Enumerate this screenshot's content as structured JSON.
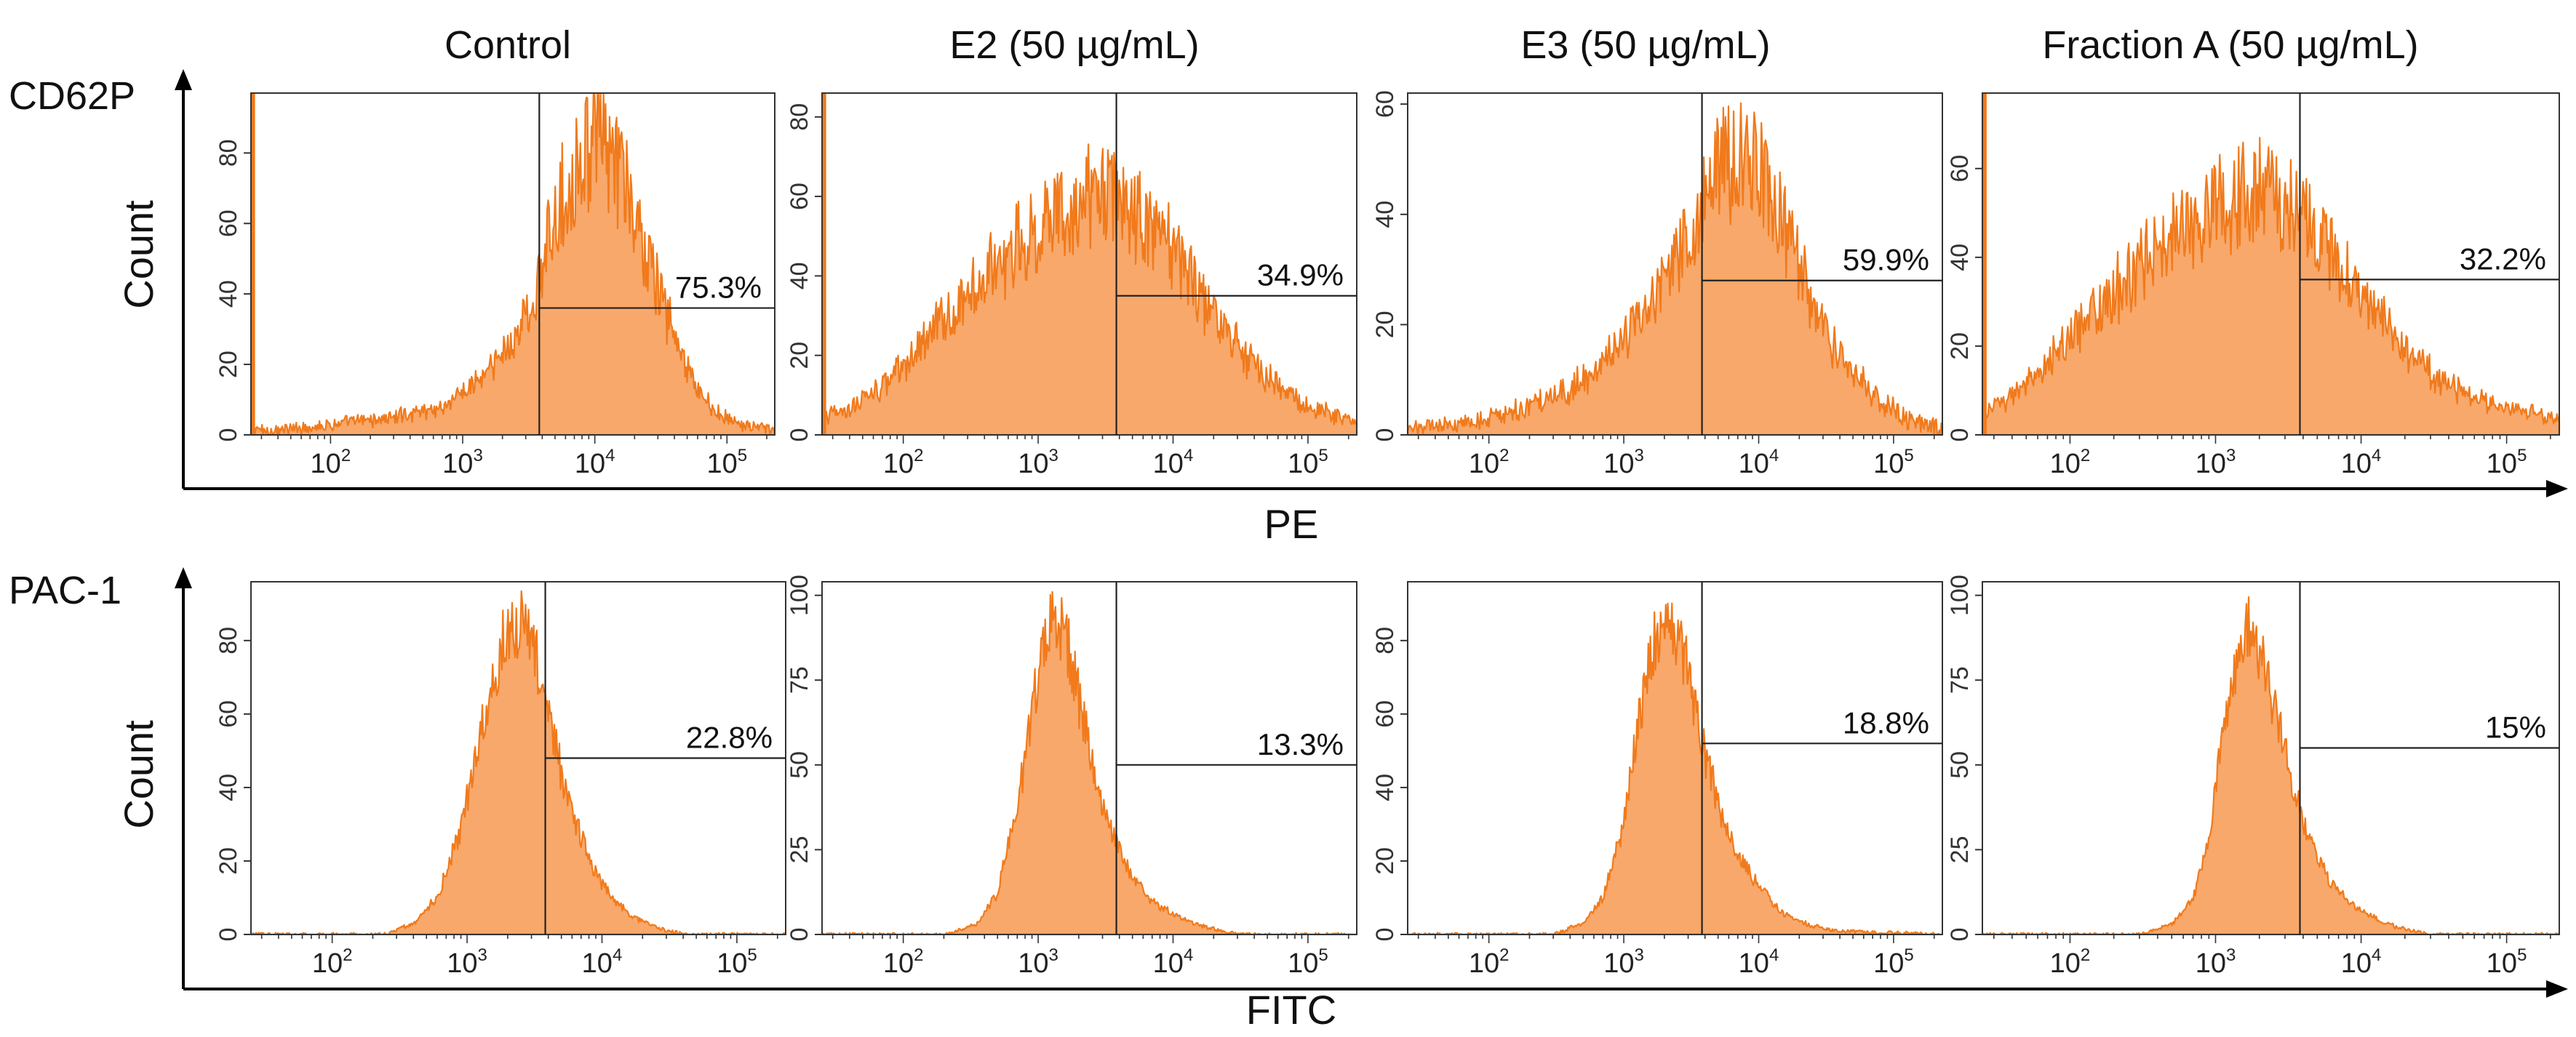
{
  "chart_data": {
    "type": "histogram",
    "title": "",
    "columns": [
      "Control",
      "E2 (50 µg/mL)",
      "E3 (50 µg/mL)",
      "Fraction A (50 µg/mL)"
    ],
    "xscale": "log",
    "xlim": [
      25,
      230000
    ],
    "x_ticks": [
      {
        "value": 100,
        "base": "10",
        "exp": "2"
      },
      {
        "value": 1000,
        "base": "10",
        "exp": "3"
      },
      {
        "value": 10000,
        "base": "10",
        "exp": "4"
      },
      {
        "value": 100000,
        "base": "10",
        "exp": "5"
      }
    ],
    "fill_color": "#f8a86a",
    "line_color": "#f07a1c",
    "gate_color": "#222222",
    "rows": [
      {
        "marker": "CD62P",
        "ylabel": "Count",
        "xlabel": "PE",
        "panels": [
          {
            "condition": "Control",
            "ymax": 97,
            "yticks": [
              0,
              20,
              40,
              60,
              80
            ],
            "gate_x": 3800,
            "gate_y": 36,
            "percent_label": "75.3%",
            "curve": [
              [
                25,
                2
              ],
              [
                35,
                1
              ],
              [
                100,
                3
              ],
              [
                300,
                5
              ],
              [
                700,
                8
              ],
              [
                1000,
                12
              ],
              [
                1600,
                18
              ],
              [
                2500,
                28
              ],
              [
                3500,
                38
              ],
              [
                4500,
                55
              ],
              [
                6000,
                70
              ],
              [
                8000,
                80
              ],
              [
                10000,
                84
              ],
              [
                13000,
                80
              ],
              [
                17000,
                70
              ],
              [
                22000,
                56
              ],
              [
                30000,
                42
              ],
              [
                40000,
                28
              ],
              [
                55000,
                15
              ],
              [
                80000,
                7
              ],
              [
                120000,
                3
              ],
              [
                230000,
                1
              ]
            ],
            "spike": {
              "x": 26,
              "y": 97
            }
          },
          {
            "condition": "E2 (50 µg/mL)",
            "ymax": 86,
            "yticks": [
              0,
              20,
              40,
              60,
              80
            ],
            "gate_x": 3800,
            "gate_y": 35,
            "percent_label": "34.9%",
            "curve": [
              [
                25,
                4
              ],
              [
                40,
                7
              ],
              [
                70,
                12
              ],
              [
                120,
                20
              ],
              [
                200,
                29
              ],
              [
                350,
                38
              ],
              [
                600,
                46
              ],
              [
                1000,
                52
              ],
              [
                1600,
                57
              ],
              [
                2500,
                60
              ],
              [
                3500,
                60
              ],
              [
                5000,
                57
              ],
              [
                8000,
                50
              ],
              [
                13000,
                40
              ],
              [
                22000,
                28
              ],
              [
                40000,
                17
              ],
              [
                80000,
                9
              ],
              [
                150000,
                5
              ],
              [
                230000,
                3
              ]
            ],
            "spike": {
              "x": 26,
              "y": 86
            }
          },
          {
            "condition": "E3 (50 µg/mL)",
            "ymax": 62,
            "yticks": [
              0,
              20,
              40,
              60
            ],
            "gate_x": 3800,
            "gate_y": 28,
            "percent_label": "59.9%",
            "curve": [
              [
                25,
                1
              ],
              [
                60,
                2
              ],
              [
                150,
                4
              ],
              [
                300,
                7
              ],
              [
                600,
                11
              ],
              [
                1000,
                17
              ],
              [
                1600,
                24
              ],
              [
                2500,
                32
              ],
              [
                3500,
                40
              ],
              [
                5000,
                48
              ],
              [
                7000,
                52
              ],
              [
                9000,
                50
              ],
              [
                12000,
                44
              ],
              [
                17000,
                35
              ],
              [
                25000,
                24
              ],
              [
                40000,
                14
              ],
              [
                70000,
                7
              ],
              [
                120000,
                3
              ],
              [
                230000,
                1
              ]
            ],
            "spike": null
          },
          {
            "condition": "Fraction A (50 µg/mL)",
            "ymax": 77,
            "yticks": [
              0,
              20,
              40,
              60
            ],
            "gate_x": 3800,
            "gate_y": 35,
            "percent_label": "32.2%",
            "curve": [
              [
                25,
                5
              ],
              [
                40,
                9
              ],
              [
                70,
                16
              ],
              [
                120,
                24
              ],
              [
                200,
                32
              ],
              [
                350,
                40
              ],
              [
                600,
                46
              ],
              [
                1000,
                51
              ],
              [
                1500,
                54
              ],
              [
                2200,
                55
              ],
              [
                3000,
                53
              ],
              [
                4500,
                47
              ],
              [
                7000,
                38
              ],
              [
                12000,
                28
              ],
              [
                22000,
                18
              ],
              [
                45000,
                10
              ],
              [
                90000,
                6
              ],
              [
                230000,
                4
              ]
            ],
            "spike": {
              "x": 26,
              "y": 77
            }
          }
        ]
      },
      {
        "marker": "PAC-1",
        "ylabel": "Count",
        "xlabel": "FITC",
        "panels": [
          {
            "condition": "Control",
            "ymax": 96,
            "yticks": [
              0,
              20,
              40,
              60,
              80
            ],
            "gate_x": 3800,
            "gate_y": 48,
            "percent_label": "22.8%",
            "curve": [
              [
                25,
                0
              ],
              [
                250,
                0
              ],
              [
                400,
                3
              ],
              [
                600,
                10
              ],
              [
                900,
                28
              ],
              [
                1200,
                52
              ],
              [
                1600,
                72
              ],
              [
                2000,
                84
              ],
              [
                2500,
                85
              ],
              [
                3200,
                76
              ],
              [
                4000,
                60
              ],
              [
                5000,
                44
              ],
              [
                6500,
                30
              ],
              [
                8500,
                18
              ],
              [
                12000,
                10
              ],
              [
                17000,
                5
              ],
              [
                25000,
                2
              ],
              [
                40000,
                0
              ],
              [
                230000,
                0
              ]
            ],
            "spike": null
          },
          {
            "condition": "E2 (50 µg/mL)",
            "ymax": 104,
            "yticks": [
              0,
              25,
              50,
              75,
              100
            ],
            "gate_x": 3800,
            "gate_y": 50,
            "percent_label": "13.3%",
            "curve": [
              [
                25,
                0
              ],
              [
                200,
                0
              ],
              [
                350,
                3
              ],
              [
                500,
                12
              ],
              [
                700,
                38
              ],
              [
                900,
                65
              ],
              [
                1100,
                88
              ],
              [
                1300,
                95
              ],
              [
                1600,
                88
              ],
              [
                2000,
                70
              ],
              [
                2600,
                48
              ],
              [
                3500,
                30
              ],
              [
                4800,
                18
              ],
              [
                7000,
                10
              ],
              [
                11000,
                5
              ],
              [
                18000,
                2
              ],
              [
                30000,
                0
              ],
              [
                230000,
                0
              ]
            ],
            "spike": null
          },
          {
            "condition": "E3 (50 µg/mL)",
            "ymax": 96,
            "yticks": [
              0,
              20,
              40,
              60,
              80
            ],
            "gate_x": 3800,
            "gate_y": 52,
            "percent_label": "18.8%",
            "curve": [
              [
                25,
                0
              ],
              [
                300,
                0
              ],
              [
                500,
                3
              ],
              [
                700,
                10
              ],
              [
                1000,
                30
              ],
              [
                1300,
                58
              ],
              [
                1700,
                80
              ],
              [
                2100,
                86
              ],
              [
                2600,
                80
              ],
              [
                3300,
                64
              ],
              [
                4200,
                46
              ],
              [
                5500,
                31
              ],
              [
                7500,
                20
              ],
              [
                10500,
                12
              ],
              [
                15000,
                6
              ],
              [
                22000,
                3
              ],
              [
                35000,
                1
              ],
              [
                230000,
                0
              ]
            ],
            "spike": null
          },
          {
            "condition": "Fraction A (50 µg/mL)",
            "ymax": 104,
            "yticks": [
              0,
              25,
              50,
              75,
              100
            ],
            "gate_x": 3800,
            "gate_y": 55,
            "percent_label": "15%",
            "curve": [
              [
                25,
                0
              ],
              [
                300,
                0
              ],
              [
                500,
                3
              ],
              [
                700,
                10
              ],
              [
                900,
                28
              ],
              [
                1100,
                55
              ],
              [
                1400,
                82
              ],
              [
                1700,
                92
              ],
              [
                2100,
                82
              ],
              [
                2700,
                62
              ],
              [
                3500,
                42
              ],
              [
                4500,
                27
              ],
              [
                6000,
                16
              ],
              [
                8500,
                9
              ],
              [
                12000,
                5
              ],
              [
                18000,
                2
              ],
              [
                30000,
                0
              ],
              [
                230000,
                0
              ]
            ],
            "spike": null
          }
        ]
      }
    ]
  }
}
